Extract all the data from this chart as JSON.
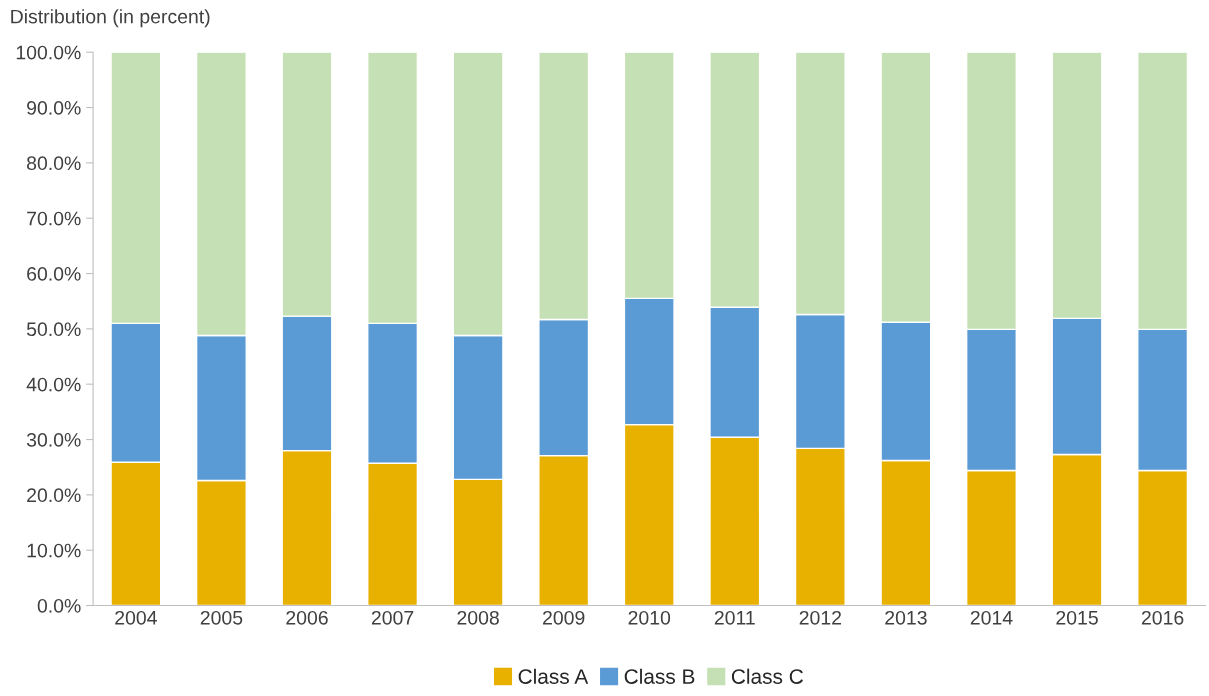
{
  "chart_data": {
    "type": "bar",
    "stacked": true,
    "ylabel": "Distribution (in percent)",
    "categories": [
      "2004",
      "2005",
      "2006",
      "2007",
      "2008",
      "2009",
      "2010",
      "2011",
      "2012",
      "2013",
      "2014",
      "2015",
      "2016"
    ],
    "series": [
      {
        "name": "Class A",
        "color": "#e8b100",
        "values": [
          25.9,
          22.6,
          28.0,
          25.7,
          22.8,
          27.1,
          32.7,
          30.4,
          28.4,
          26.2,
          24.4,
          27.3,
          24.4
        ]
      },
      {
        "name": "Class B",
        "color": "#5b9bd5",
        "values": [
          25.1,
          26.2,
          24.3,
          25.3,
          26.0,
          24.6,
          22.8,
          23.5,
          24.2,
          25.0,
          25.5,
          24.6,
          25.5
        ]
      },
      {
        "name": "Class C",
        "color": "#c5e0b4",
        "values": [
          49.0,
          51.2,
          47.7,
          49.0,
          51.2,
          48.3,
          44.5,
          46.1,
          47.4,
          48.8,
          50.1,
          48.1,
          50.1
        ]
      }
    ],
    "ylim": [
      0,
      100
    ],
    "yticks": [
      {
        "value": 0,
        "label": "0.0%"
      },
      {
        "value": 10,
        "label": "10.0%"
      },
      {
        "value": 20,
        "label": "20.0%"
      },
      {
        "value": 30,
        "label": "30.0%"
      },
      {
        "value": 40,
        "label": "40.0%"
      },
      {
        "value": 50,
        "label": "50.0%"
      },
      {
        "value": 60,
        "label": "60.0%"
      },
      {
        "value": 70,
        "label": "70.0%"
      },
      {
        "value": 80,
        "label": "80.0%"
      },
      {
        "value": 90,
        "label": "90.0%"
      },
      {
        "value": 100,
        "label": "100.0%"
      }
    ],
    "grid": false,
    "legend": "bottom"
  }
}
